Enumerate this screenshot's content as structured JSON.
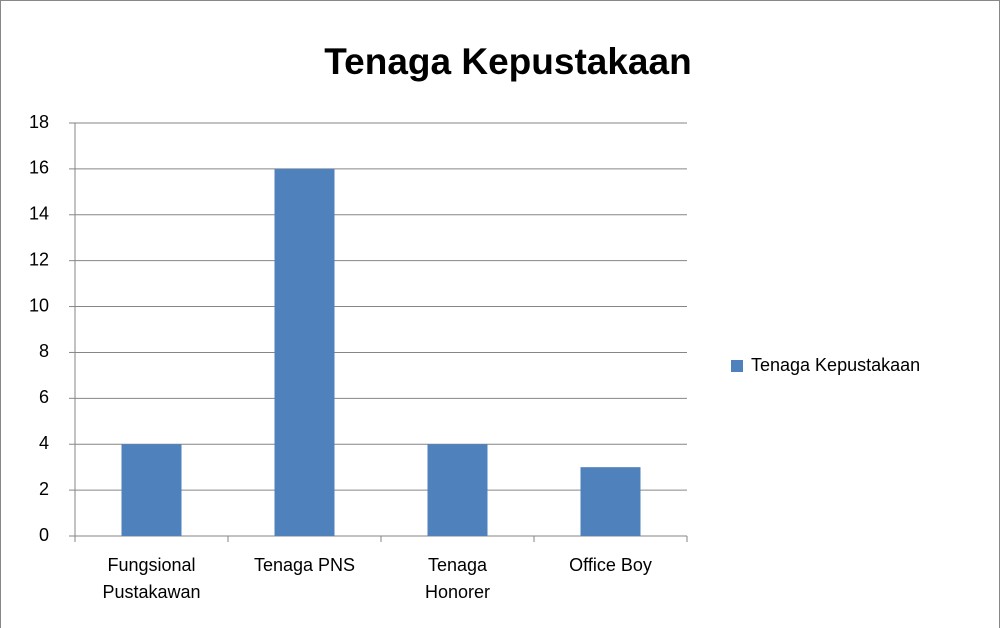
{
  "chart_data": {
    "type": "bar",
    "title": "Tenaga Kepustakaan",
    "categories": [
      "Fungsional Pustakawan",
      "Tenaga PNS",
      "Tenaga Honorer",
      "Office Boy"
    ],
    "series": [
      {
        "name": "Tenaga Kepustakaan",
        "color": "#4f81bd",
        "values": [
          4,
          16,
          4,
          3
        ]
      }
    ],
    "ylim": [
      0,
      18
    ],
    "yticks": [
      0,
      2,
      4,
      6,
      8,
      10,
      12,
      14,
      16,
      18
    ],
    "grid": true,
    "legend": "right"
  }
}
